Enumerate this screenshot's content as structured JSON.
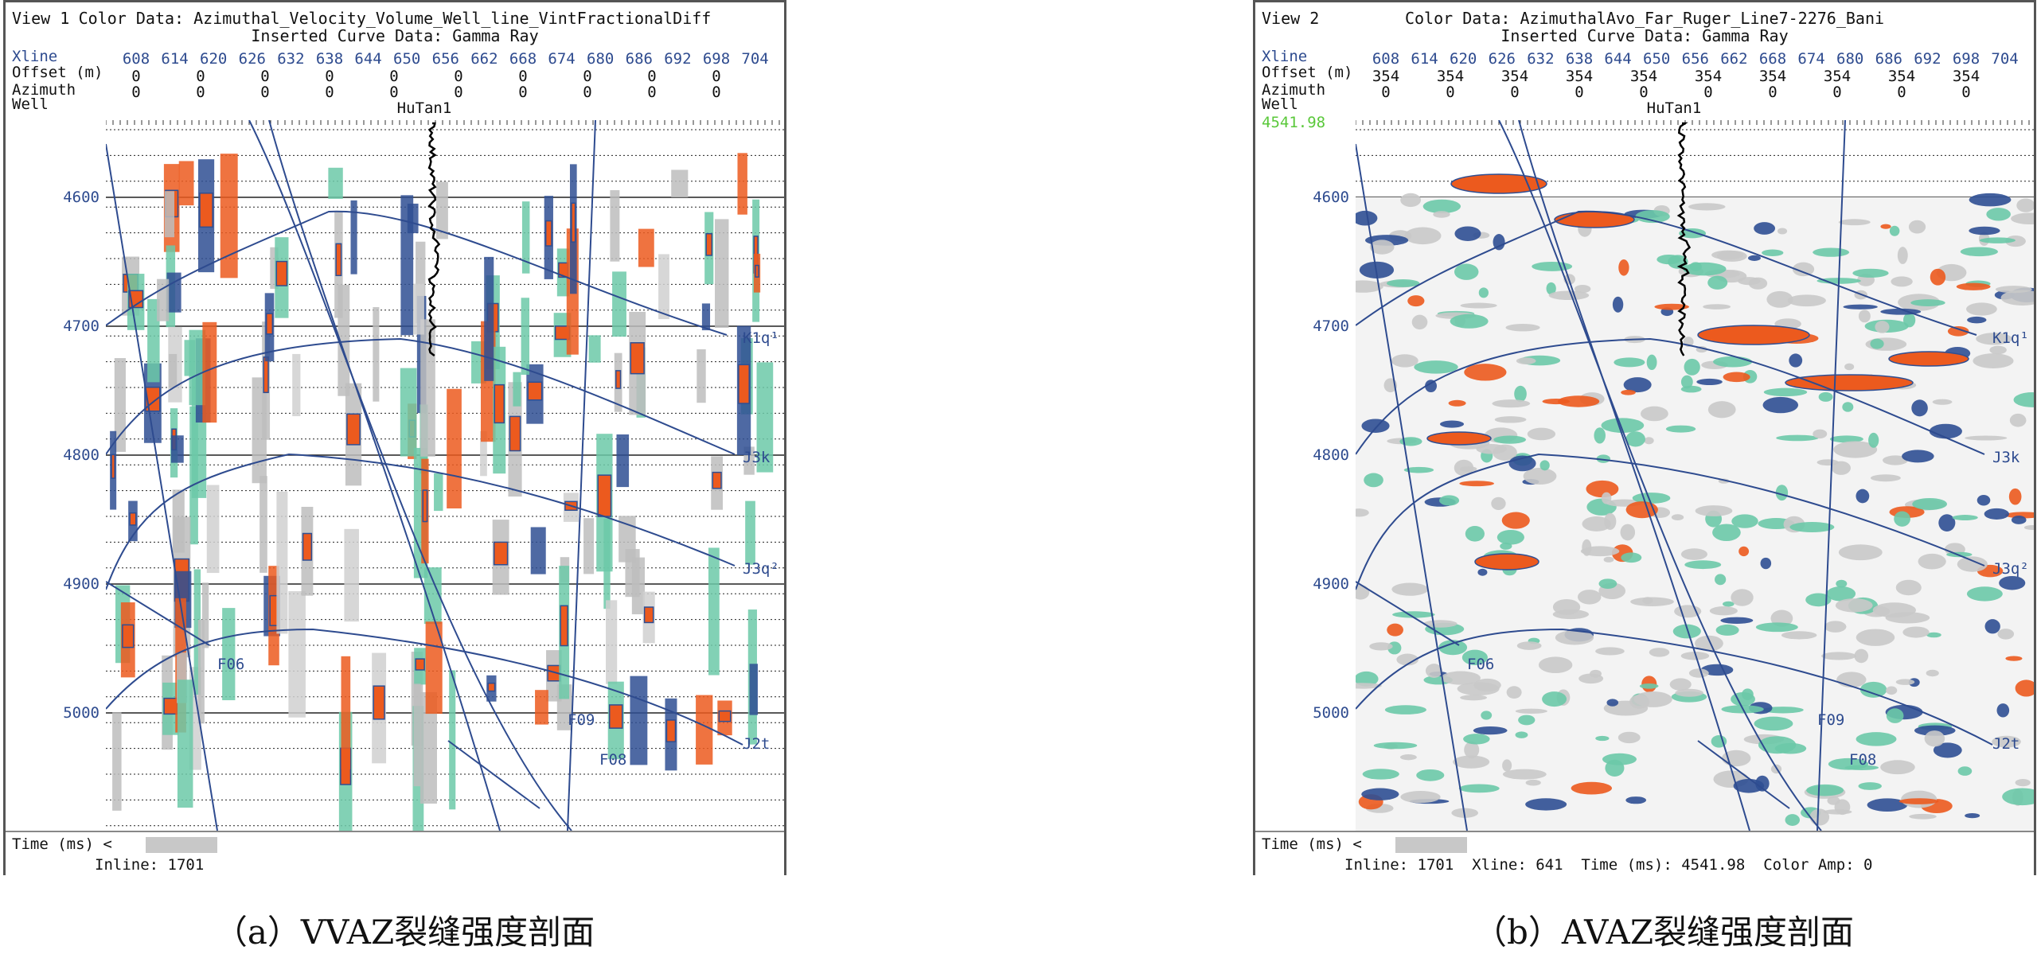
{
  "views": [
    {
      "view_label": "View 1",
      "color_data": "Color Data: Azimuthal_Velocity_Volume_Well_line_VintFractionalDiff",
      "curve_data": "Inserted Curve Data: Gamma Ray",
      "header_labels": [
        "Xline",
        "Offset (m)",
        "Azimuth",
        "Well"
      ],
      "xlines": [
        "608",
        "614",
        "620",
        "626",
        "632",
        "638",
        "644",
        "650",
        "656",
        "662",
        "668",
        "674",
        "680",
        "686",
        "692",
        "698",
        "704"
      ],
      "offsets": [
        "0",
        "0",
        "0",
        "0",
        "0",
        "0",
        "0",
        "0",
        "0",
        "0"
      ],
      "azimuths": [
        "0",
        "0",
        "0",
        "0",
        "0",
        "0",
        "0",
        "0",
        "0",
        "0"
      ],
      "well_name": "HuTan1",
      "time_labels": [
        "4600",
        "4700",
        "4800",
        "4900",
        "5000"
      ],
      "horizons": [
        "K1q¹",
        "J3k",
        "J3q²",
        "J2t"
      ],
      "faults": [
        "F06",
        "F08",
        "F09"
      ],
      "time_label": "Time (ms) <",
      "status": "Inline: 1701",
      "caption": "（a）VVAZ裂缝强度剖面",
      "readout": ""
    },
    {
      "view_label": "View 2",
      "color_data": "Color Data: AzimuthalAvo_Far_Ruger_Line7-2276_Bani",
      "curve_data": "Inserted Curve Data: Gamma Ray",
      "header_labels": [
        "Xline",
        "Offset (m)",
        "Azimuth",
        "Well"
      ],
      "xlines": [
        "608",
        "614",
        "620",
        "626",
        "632",
        "638",
        "644",
        "650",
        "656",
        "662",
        "668",
        "674",
        "680",
        "686",
        "692",
        "698",
        "704"
      ],
      "offsets": [
        "354",
        "354",
        "354",
        "354",
        "354",
        "354",
        "354",
        "354",
        "354",
        "354"
      ],
      "azimuths": [
        "0",
        "0",
        "0",
        "0",
        "0",
        "0",
        "0",
        "0",
        "0",
        "0"
      ],
      "well_name": "HuTan1",
      "time_labels": [
        "4600",
        "4700",
        "4800",
        "4900",
        "5000"
      ],
      "horizons": [
        "K1q¹",
        "J3k",
        "J3q²",
        "J2t"
      ],
      "faults": [
        "F06",
        "F08",
        "F09"
      ],
      "time_label": "Time (ms) <",
      "status": "Inline: 1701  Xline: 641  Time (ms): 4541.98  Color Amp: 0",
      "caption": "（b）AVAZ裂缝强度剖面",
      "readout": "4541.98"
    }
  ],
  "colors": {
    "horizon_line": "#2e4b8f",
    "axis_text": "#2e4b8f",
    "orange": "#ec5a1e",
    "teal": "#6cc9a8",
    "navy": "#2f4f93",
    "gray": "#bdbdbd",
    "cursor": "#5ac83a"
  }
}
